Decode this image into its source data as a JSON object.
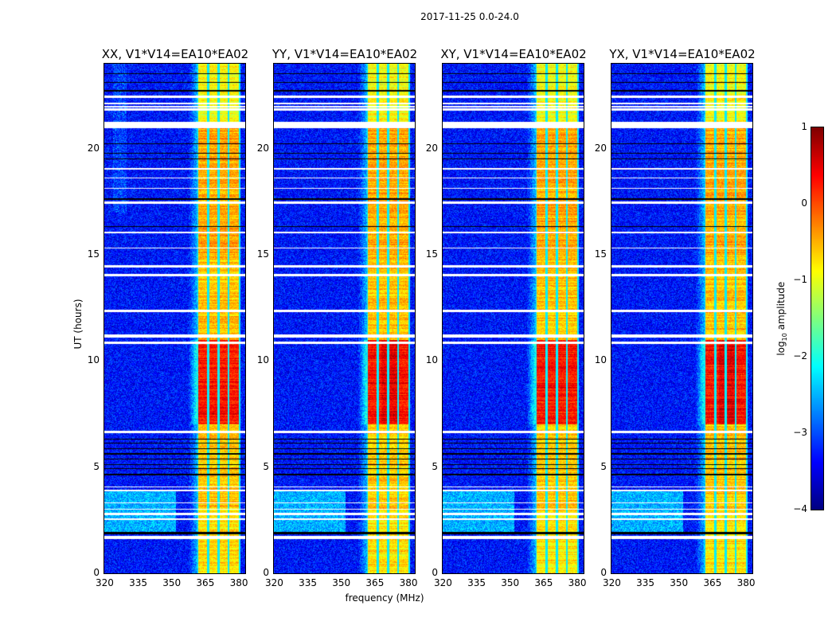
{
  "suptitle": "2017-11-25 0.0-24.0",
  "chart_data": {
    "type": "heatmap",
    "panels": [
      {
        "title": "XX, V1*V14=EA10*EA02",
        "pol": "XX"
      },
      {
        "title": "YY, V1*V14=EA10*EA02",
        "pol": "YY"
      },
      {
        "title": "XY, V1*V14=EA10*EA02",
        "pol": "XY"
      },
      {
        "title": "YX, V1*V14=EA10*EA02",
        "pol": "YX"
      }
    ],
    "xlabel": "frequency (MHz)",
    "ylabel": "UT (hours)",
    "xlim": [
      320,
      383
    ],
    "ylim": [
      0,
      24
    ],
    "xticks": [
      "320",
      "335",
      "350",
      "365",
      "380"
    ],
    "xtick_values": [
      320,
      335,
      350,
      365,
      380
    ],
    "yticks": [
      "0",
      "5",
      "10",
      "15",
      "20"
    ],
    "ytick_values": [
      0,
      5,
      10,
      15,
      20
    ],
    "colorbar": {
      "label_main": "log",
      "label_sub": "10",
      "label_rest": " amplitude",
      "range": [
        -4,
        1
      ],
      "ticks": [
        "1",
        "0",
        "−1",
        "−2",
        "−3",
        "−4"
      ],
      "tick_values": [
        1,
        0,
        -1,
        -2,
        -3,
        -4
      ],
      "colormap": "jet"
    },
    "background_level": -3.3,
    "band_mhz": [
      361.5,
      381
    ],
    "band_channel_edges_mhz": [
      361.5,
      366.5,
      371,
      375.5,
      380.5
    ],
    "band_level": -0.6,
    "bright_interval_hours": [
      7,
      11
    ],
    "bright_level": 0.3,
    "flagged_white_hours": [
      [
        1.6,
        1.75
      ],
      [
        2.5,
        2.6
      ],
      [
        2.75,
        2.85
      ],
      [
        3.0,
        3.05
      ],
      [
        3.3,
        3.35
      ],
      [
        3.85,
        3.95
      ],
      [
        4.05,
        4.1
      ],
      [
        6.6,
        6.7
      ],
      [
        10.8,
        10.9
      ],
      [
        11.1,
        11.25
      ],
      [
        12.3,
        12.4
      ],
      [
        14.0,
        14.1
      ],
      [
        14.4,
        14.5
      ],
      [
        15.3,
        15.35
      ],
      [
        16.0,
        16.1
      ],
      [
        17.4,
        17.5
      ],
      [
        18.1,
        18.15
      ],
      [
        18.6,
        18.65
      ],
      [
        19.0,
        19.1
      ],
      [
        20.95,
        21.25
      ],
      [
        21.8,
        21.9
      ],
      [
        21.95,
        22.0
      ],
      [
        22.1,
        22.15
      ],
      [
        22.4,
        22.5
      ]
    ],
    "flagged_black_hours": [
      [
        1.85,
        1.95
      ],
      [
        4.6,
        4.7
      ],
      [
        4.9,
        4.95
      ],
      [
        5.1,
        5.15
      ],
      [
        5.35,
        5.4
      ],
      [
        5.6,
        5.65
      ],
      [
        5.85,
        5.9
      ],
      [
        6.1,
        6.15
      ],
      [
        6.3,
        6.35
      ],
      [
        16.3,
        16.35
      ],
      [
        17.6,
        17.65
      ],
      [
        19.5,
        19.55
      ],
      [
        19.75,
        19.8
      ],
      [
        20.2,
        20.25
      ],
      [
        22.7,
        22.75
      ],
      [
        23.1,
        23.15
      ],
      [
        23.5,
        23.55
      ]
    ]
  }
}
